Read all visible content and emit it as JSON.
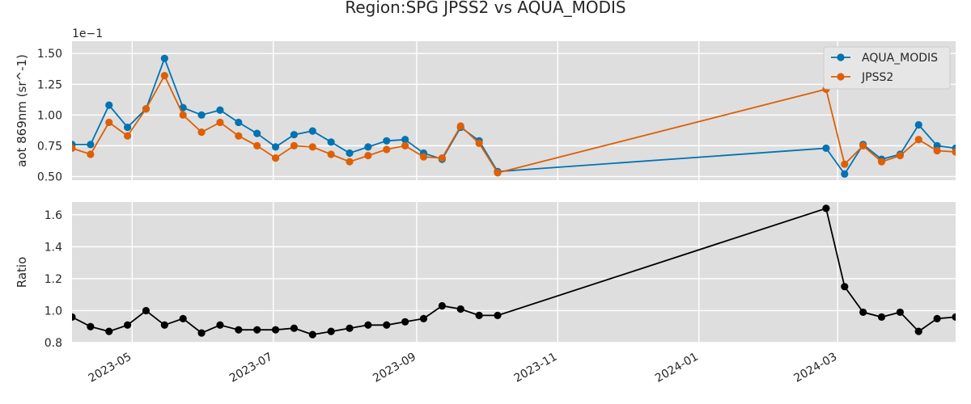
{
  "title": "Region:SPG JPSS2 vs AQUA_MODIS",
  "chart_data": [
    {
      "type": "line",
      "ylabel": "aot 869nm (sr^-1)",
      "y_scale_label": "1e−1",
      "ylim": [
        0.47,
        1.6
      ],
      "yticks": [
        0.5,
        0.75,
        1.0,
        1.25,
        1.5
      ],
      "ytick_labels": [
        "0.50",
        "0.75",
        "1.00",
        "1.25",
        "1.50"
      ],
      "grid": true,
      "legend_position": "top-right",
      "x": [
        "2023-04-05",
        "2023-04-13",
        "2023-04-21",
        "2023-04-29",
        "2023-05-07",
        "2023-05-15",
        "2023-05-23",
        "2023-05-31",
        "2023-06-08",
        "2023-06-16",
        "2023-06-24",
        "2023-07-02",
        "2023-07-10",
        "2023-07-18",
        "2023-07-26",
        "2023-08-03",
        "2023-08-11",
        "2023-08-19",
        "2023-08-27",
        "2023-09-04",
        "2023-09-12",
        "2023-09-20",
        "2023-09-28",
        "2023-10-06",
        "2024-02-25",
        "2024-03-04",
        "2024-03-12",
        "2024-03-20",
        "2024-03-28",
        "2024-04-05",
        "2024-04-13",
        "2024-04-21"
      ],
      "series": [
        {
          "name": "AQUA_MODIS",
          "color": "#0173b2",
          "values": [
            0.76,
            0.76,
            1.08,
            0.9,
            1.05,
            1.46,
            1.06,
            1.0,
            1.04,
            0.94,
            0.85,
            0.74,
            0.84,
            0.87,
            0.78,
            0.69,
            0.74,
            0.79,
            0.8,
            0.69,
            0.64,
            0.9,
            0.79,
            0.54,
            0.73,
            0.52,
            0.76,
            0.64,
            0.68,
            0.92,
            0.75,
            0.73
          ]
        },
        {
          "name": "JPSS2",
          "color": "#de5f05",
          "values": [
            0.73,
            0.68,
            0.94,
            0.83,
            1.05,
            1.32,
            1.0,
            0.86,
            0.94,
            0.83,
            0.75,
            0.65,
            0.75,
            0.74,
            0.68,
            0.62,
            0.67,
            0.72,
            0.75,
            0.66,
            0.65,
            0.91,
            0.77,
            0.53,
            1.21,
            0.6,
            0.75,
            0.62,
            0.67,
            0.8,
            0.71,
            0.7
          ]
        }
      ]
    },
    {
      "type": "line",
      "ylabel": "Ratio",
      "ylim": [
        0.8,
        1.68
      ],
      "yticks": [
        0.8,
        1.0,
        1.2,
        1.4,
        1.6
      ],
      "ytick_labels": [
        "0.8",
        "1.0",
        "1.2",
        "1.4",
        "1.6"
      ],
      "grid": true,
      "x": [
        "2023-04-05",
        "2023-04-13",
        "2023-04-21",
        "2023-04-29",
        "2023-05-07",
        "2023-05-15",
        "2023-05-23",
        "2023-05-31",
        "2023-06-08",
        "2023-06-16",
        "2023-06-24",
        "2023-07-02",
        "2023-07-10",
        "2023-07-18",
        "2023-07-26",
        "2023-08-03",
        "2023-08-11",
        "2023-08-19",
        "2023-08-27",
        "2023-09-04",
        "2023-09-12",
        "2023-09-20",
        "2023-09-28",
        "2023-10-06",
        "2024-02-25",
        "2024-03-04",
        "2024-03-12",
        "2024-03-20",
        "2024-03-28",
        "2024-04-05",
        "2024-04-13",
        "2024-04-21"
      ],
      "series": [
        {
          "color": "#000000",
          "values": [
            0.96,
            0.9,
            0.87,
            0.91,
            1.0,
            0.91,
            0.95,
            0.86,
            0.91,
            0.88,
            0.88,
            0.88,
            0.89,
            0.85,
            0.87,
            0.89,
            0.91,
            0.91,
            0.93,
            0.95,
            1.03,
            1.01,
            0.97,
            0.97,
            1.64,
            1.15,
            0.99,
            0.96,
            0.99,
            0.87,
            0.95,
            0.96
          ]
        }
      ]
    }
  ],
  "x_axis": {
    "xlim": [
      "2023-04-05",
      "2024-04-21"
    ],
    "ticks": [
      "2023-05-01",
      "2023-07-01",
      "2023-09-01",
      "2023-11-01",
      "2024-01-01",
      "2024-03-01"
    ],
    "tick_labels": [
      "2023-05",
      "2023-07",
      "2023-09",
      "2023-11",
      "2024-01",
      "2024-03"
    ]
  }
}
